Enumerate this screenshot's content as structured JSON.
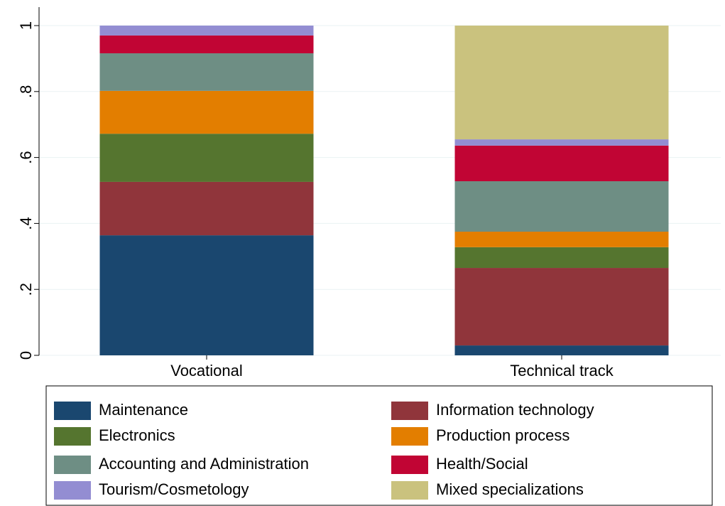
{
  "chart_data": {
    "type": "stacked_bar",
    "categories": [
      "Vocational",
      "Technical track"
    ],
    "series": [
      {
        "name": "Maintenance",
        "color": "#1a476f",
        "values": [
          0.364,
          0.03
        ]
      },
      {
        "name": "Information technology",
        "color": "#90353b",
        "values": [
          0.162,
          0.235
        ]
      },
      {
        "name": "Electronics",
        "color": "#55752f",
        "values": [
          0.146,
          0.063
        ]
      },
      {
        "name": "Production process",
        "color": "#e37e00",
        "values": [
          0.13,
          0.047
        ]
      },
      {
        "name": "Accounting and Administration",
        "color": "#6e8e84",
        "values": [
          0.114,
          0.153
        ]
      },
      {
        "name": "Health/Social",
        "color": "#c10534",
        "values": [
          0.054,
          0.108
        ]
      },
      {
        "name": "Tourism/Cosmetology",
        "color": "#938dd2",
        "values": [
          0.03,
          0.019
        ]
      },
      {
        "name": "Mixed specializations",
        "color": "#cac27e",
        "values": [
          0,
          0.345
        ]
      }
    ],
    "ylim": [
      0,
      1
    ],
    "yticks": [
      0,
      {
        "value": 0.2,
        "label": ".2"
      },
      {
        "value": 0.4,
        "label": ".4"
      },
      {
        "value": 0.6,
        "label": ".6"
      },
      {
        "value": 0.8,
        "label": ".8"
      },
      1
    ],
    "grid": true
  }
}
